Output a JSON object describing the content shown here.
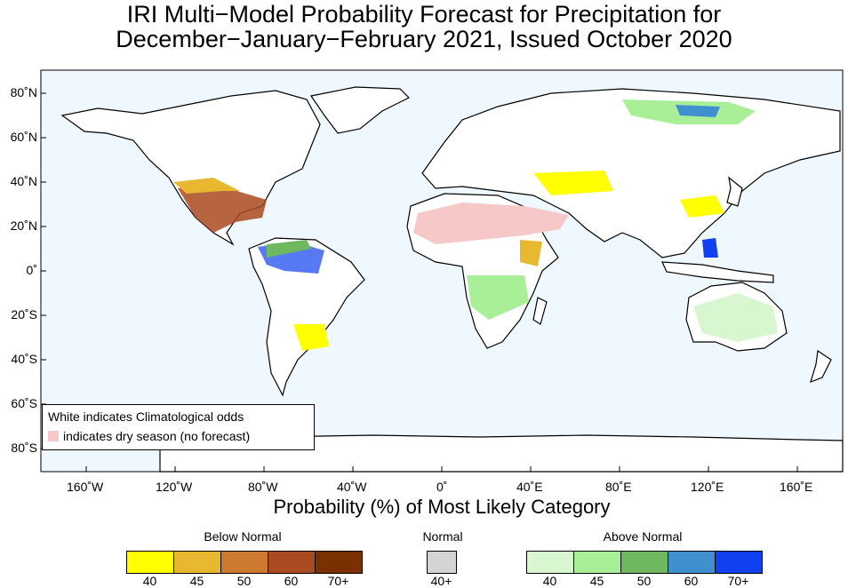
{
  "title": {
    "line1": "IRI Multi−Model Probability Forecast for Precipitation for",
    "line2": "December−January−February 2021, Issued October 2020"
  },
  "map": {
    "lat_labels": [
      "80˚N",
      "60˚N",
      "40˚N",
      "20˚N",
      "0˚",
      "20˚S",
      "40˚S",
      "60˚S",
      "80˚S"
    ],
    "lon_labels": [
      "160˚W",
      "120˚W",
      "80˚W",
      "40˚W",
      "0˚",
      "40˚E",
      "80˚E",
      "120˚E",
      "160˚E"
    ],
    "ocean_color": "#f0f8ff",
    "land_color": "#ffffff"
  },
  "x_axis_title": "Probability (%) of Most Likely Category",
  "note": {
    "line1": "White indicates Climatological odds",
    "line2": "indicates dry season (no forecast)",
    "dry_color": "#f7c8c8"
  },
  "legend": {
    "below": {
      "title": "Below Normal",
      "colors": [
        "#ffff00",
        "#e8b830",
        "#cc7a30",
        "#aa4a20",
        "#7a3000"
      ],
      "labels": [
        "40",
        "45",
        "50",
        "60",
        "70+"
      ]
    },
    "normal": {
      "title": "Normal",
      "colors": [
        "#d4d4d4"
      ],
      "labels": [
        "40+"
      ]
    },
    "above": {
      "title": "Above Normal",
      "colors": [
        "#d8f7d0",
        "#a8ef98",
        "#70b860",
        "#4090d0",
        "#1040f0"
      ],
      "labels": [
        "40",
        "45",
        "50",
        "60",
        "70+"
      ]
    }
  }
}
